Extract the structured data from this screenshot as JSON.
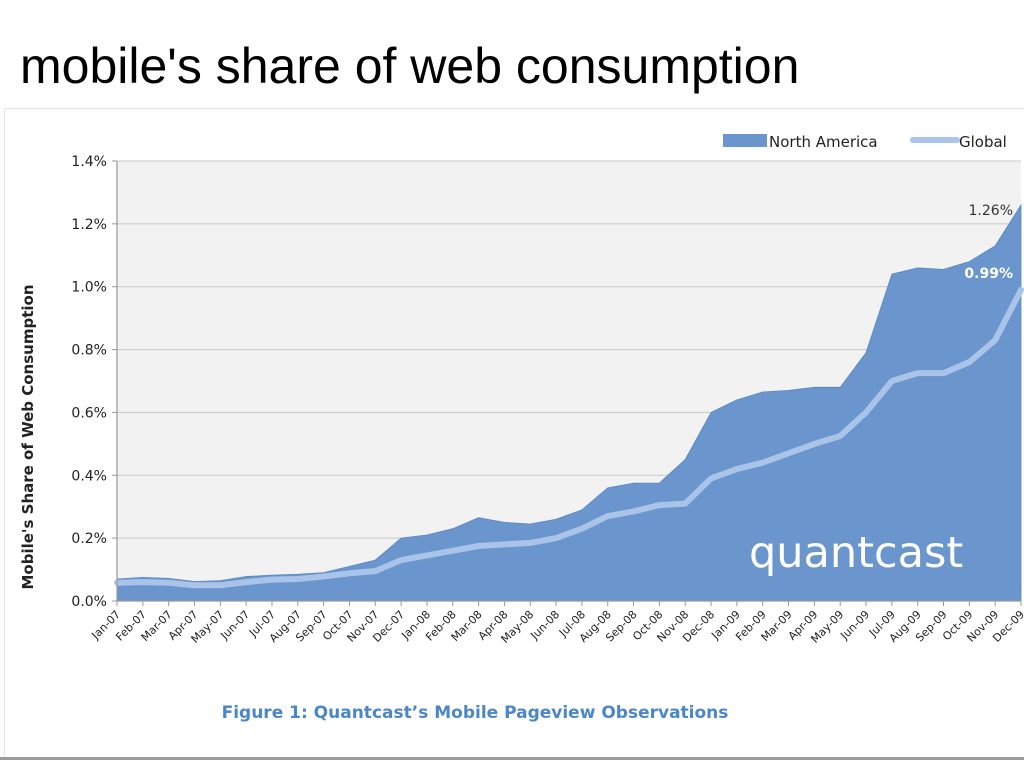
{
  "slide": {
    "title": "mobile's share of web consumption"
  },
  "figure": {
    "caption": "Figure 1: Quantcast’s Mobile Pageview Observations",
    "watermark": "quantcast"
  },
  "colors": {
    "area": "#6b95cd",
    "global_line": "#a9c4e8",
    "plot_bg": "#f2f2f2",
    "caption": "#4a86c8"
  },
  "chart_data": {
    "type": "area",
    "title": "",
    "xlabel": "",
    "ylabel": "Mobile's Share of Web Consumption",
    "ylim": [
      0,
      1.4
    ],
    "yticks": [
      0.0,
      0.2,
      0.4,
      0.6,
      0.8,
      1.0,
      1.2,
      1.4
    ],
    "ytick_labels": [
      "0.0%",
      "0.2%",
      "0.4%",
      "0.6%",
      "0.8%",
      "1.0%",
      "1.2%",
      "1.4%"
    ],
    "grid": true,
    "legend_position": "top-right",
    "categories": [
      "Jan-07",
      "Feb-07",
      "Mar-07",
      "Apr-07",
      "May-07",
      "Jun-07",
      "Jul-07",
      "Aug-07",
      "Sep-07",
      "Oct-07",
      "Nov-07",
      "Dec-07",
      "Jan-08",
      "Feb-08",
      "Mar-08",
      "Apr-08",
      "May-08",
      "Jun-08",
      "Jul-08",
      "Aug-08",
      "Sep-08",
      "Oct-08",
      "Nov-08",
      "Dec-08",
      "Jan-09",
      "Feb-09",
      "Mar-09",
      "Apr-09",
      "May-09",
      "Jun-09",
      "Jul-09",
      "Aug-09",
      "Sep-09",
      "Oct-09",
      "Nov-09",
      "Dec-09"
    ],
    "series": [
      {
        "name": "North America",
        "kind": "area",
        "values": [
          0.07,
          0.075,
          0.072,
          0.062,
          0.065,
          0.078,
          0.082,
          0.085,
          0.09,
          0.11,
          0.13,
          0.2,
          0.21,
          0.23,
          0.265,
          0.25,
          0.245,
          0.26,
          0.29,
          0.36,
          0.375,
          0.375,
          0.45,
          0.6,
          0.64,
          0.665,
          0.67,
          0.68,
          0.68,
          0.79,
          1.04,
          1.06,
          1.055,
          1.08,
          1.13,
          1.26
        ]
      },
      {
        "name": "Global",
        "kind": "line",
        "values": [
          0.058,
          0.06,
          0.058,
          0.05,
          0.05,
          0.06,
          0.068,
          0.07,
          0.078,
          0.088,
          0.095,
          0.13,
          0.145,
          0.16,
          0.175,
          0.18,
          0.185,
          0.2,
          0.23,
          0.27,
          0.285,
          0.305,
          0.31,
          0.39,
          0.42,
          0.44,
          0.47,
          0.5,
          0.525,
          0.6,
          0.7,
          0.725,
          0.725,
          0.76,
          0.83,
          0.99
        ]
      }
    ],
    "annotations": [
      {
        "label": "1.26%",
        "series": "North America",
        "category": "Dec-09"
      },
      {
        "label": "0.99%",
        "series": "Global",
        "category": "Dec-09"
      }
    ]
  }
}
